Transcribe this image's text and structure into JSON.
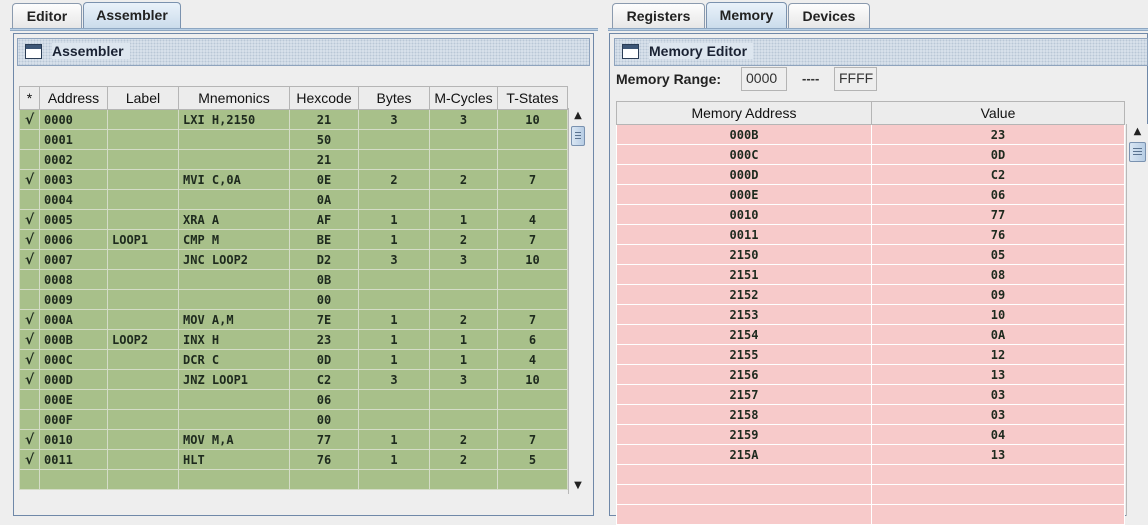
{
  "tabs_left": [
    {
      "label": "Editor",
      "selected": false
    },
    {
      "label": "Assembler",
      "selected": true
    }
  ],
  "tabs_right": [
    {
      "label": "Registers",
      "selected": false
    },
    {
      "label": "Memory",
      "selected": true
    },
    {
      "label": "Devices",
      "selected": false
    }
  ],
  "assembler": {
    "title": "Assembler",
    "columns": [
      "*",
      "Address",
      "Label",
      "Mnemonics",
      "Hexcode",
      "Bytes",
      "M-Cycles",
      "T-States"
    ],
    "rows": [
      [
        "√",
        "0000",
        "",
        "LXI H,2150",
        "21",
        "3",
        "3",
        "10"
      ],
      [
        "",
        "0001",
        "",
        "",
        "50",
        "",
        "",
        ""
      ],
      [
        "",
        "0002",
        "",
        "",
        "21",
        "",
        "",
        ""
      ],
      [
        "√",
        "0003",
        "",
        "MVI C,0A",
        "0E",
        "2",
        "2",
        "7"
      ],
      [
        "",
        "0004",
        "",
        "",
        "0A",
        "",
        "",
        ""
      ],
      [
        "√",
        "0005",
        "",
        "XRA A",
        "AF",
        "1",
        "1",
        "4"
      ],
      [
        "√",
        "0006",
        "LOOP1",
        "CMP M",
        "BE",
        "1",
        "2",
        "7"
      ],
      [
        "√",
        "0007",
        "",
        "JNC LOOP2",
        "D2",
        "3",
        "3",
        "10"
      ],
      [
        "",
        "0008",
        "",
        "",
        "0B",
        "",
        "",
        ""
      ],
      [
        "",
        "0009",
        "",
        "",
        "00",
        "",
        "",
        ""
      ],
      [
        "√",
        "000A",
        "",
        "MOV A,M",
        "7E",
        "1",
        "2",
        "7"
      ],
      [
        "√",
        "000B",
        "LOOP2",
        "INX H",
        "23",
        "1",
        "1",
        "6"
      ],
      [
        "√",
        "000C",
        "",
        "DCR C",
        "0D",
        "1",
        "1",
        "4"
      ],
      [
        "√",
        "000D",
        "",
        "JNZ LOOP1",
        "C2",
        "3",
        "3",
        "10"
      ],
      [
        "",
        "000E",
        "",
        "",
        "06",
        "",
        "",
        ""
      ],
      [
        "",
        "000F",
        "",
        "",
        "00",
        "",
        "",
        ""
      ],
      [
        "√",
        "0010",
        "",
        "MOV M,A",
        "77",
        "1",
        "2",
        "7"
      ],
      [
        "√",
        "0011",
        "",
        "HLT",
        "76",
        "1",
        "2",
        "5"
      ],
      [
        "",
        "",
        "",
        "",
        "",
        "",
        "",
        ""
      ]
    ]
  },
  "memory": {
    "title": "Memory Editor",
    "range_label": "Memory Range:",
    "range_from": "0000",
    "range_sep": "----",
    "range_to": "FFFF",
    "columns": [
      "Memory Address",
      "Value"
    ],
    "rows": [
      [
        "000B",
        "23"
      ],
      [
        "000C",
        "0D"
      ],
      [
        "000D",
        "C2"
      ],
      [
        "000E",
        "06"
      ],
      [
        "0010",
        "77"
      ],
      [
        "0011",
        "76"
      ],
      [
        "2150",
        "05"
      ],
      [
        "2151",
        "08"
      ],
      [
        "2152",
        "09"
      ],
      [
        "2153",
        "10"
      ],
      [
        "2154",
        "0A"
      ],
      [
        "2155",
        "12"
      ],
      [
        "2156",
        "13"
      ],
      [
        "2157",
        "03"
      ],
      [
        "2158",
        "03"
      ],
      [
        "2159",
        "04"
      ],
      [
        "215A",
        "13"
      ],
      [
        "",
        ""
      ],
      [
        "",
        ""
      ],
      [
        "",
        ""
      ]
    ]
  },
  "colors": {
    "assembler_row": "#a8c08a",
    "memory_row": "#f7caca"
  }
}
